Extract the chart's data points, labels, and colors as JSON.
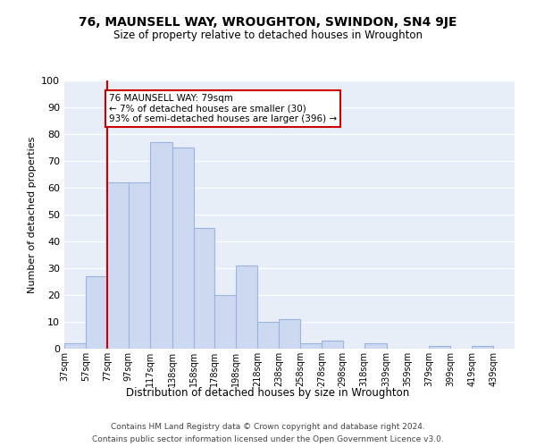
{
  "title": "76, MAUNSELL WAY, WROUGHTON, SWINDON, SN4 9JE",
  "subtitle": "Size of property relative to detached houses in Wroughton",
  "xlabel": "Distribution of detached houses by size in Wroughton",
  "ylabel": "Number of detached properties",
  "bar_color": "#ccd9f0",
  "bar_edge_color": "#9ab4de",
  "plot_bg_color": "#e8eef8",
  "background_color": "#ffffff",
  "bins": [
    "37sqm",
    "57sqm",
    "77sqm",
    "97sqm",
    "117sqm",
    "138sqm",
    "158sqm",
    "178sqm",
    "198sqm",
    "218sqm",
    "238sqm",
    "258sqm",
    "278sqm",
    "298sqm",
    "318sqm",
    "339sqm",
    "359sqm",
    "379sqm",
    "399sqm",
    "419sqm",
    "439sqm"
  ],
  "bin_edges": [
    37,
    57,
    77,
    97,
    117,
    138,
    158,
    178,
    198,
    218,
    238,
    258,
    278,
    298,
    318,
    339,
    359,
    379,
    399,
    419,
    439
  ],
  "bin_widths": [
    20,
    20,
    20,
    20,
    21,
    20,
    20,
    20,
    20,
    20,
    20,
    20,
    20,
    20,
    21,
    20,
    20,
    20,
    20,
    20,
    20
  ],
  "values": [
    2,
    27,
    62,
    62,
    77,
    75,
    45,
    20,
    31,
    10,
    11,
    2,
    3,
    0,
    2,
    0,
    0,
    1,
    0,
    1,
    0
  ],
  "ylim": [
    0,
    100
  ],
  "yticks": [
    0,
    10,
    20,
    30,
    40,
    50,
    60,
    70,
    80,
    90,
    100
  ],
  "property_line_x": 77,
  "annotation_line1": "76 MAUNSELL WAY: 79sqm",
  "annotation_line2": "← 7% of detached houses are smaller (30)",
  "annotation_line3": "93% of semi-detached houses are larger (396) →",
  "annotation_box_color": "#ffffff",
  "annotation_box_edge_color": "#cc0000",
  "property_line_color": "#cc0000",
  "footer1": "Contains HM Land Registry data © Crown copyright and database right 2024.",
  "footer2": "Contains public sector information licensed under the Open Government Licence v3.0."
}
